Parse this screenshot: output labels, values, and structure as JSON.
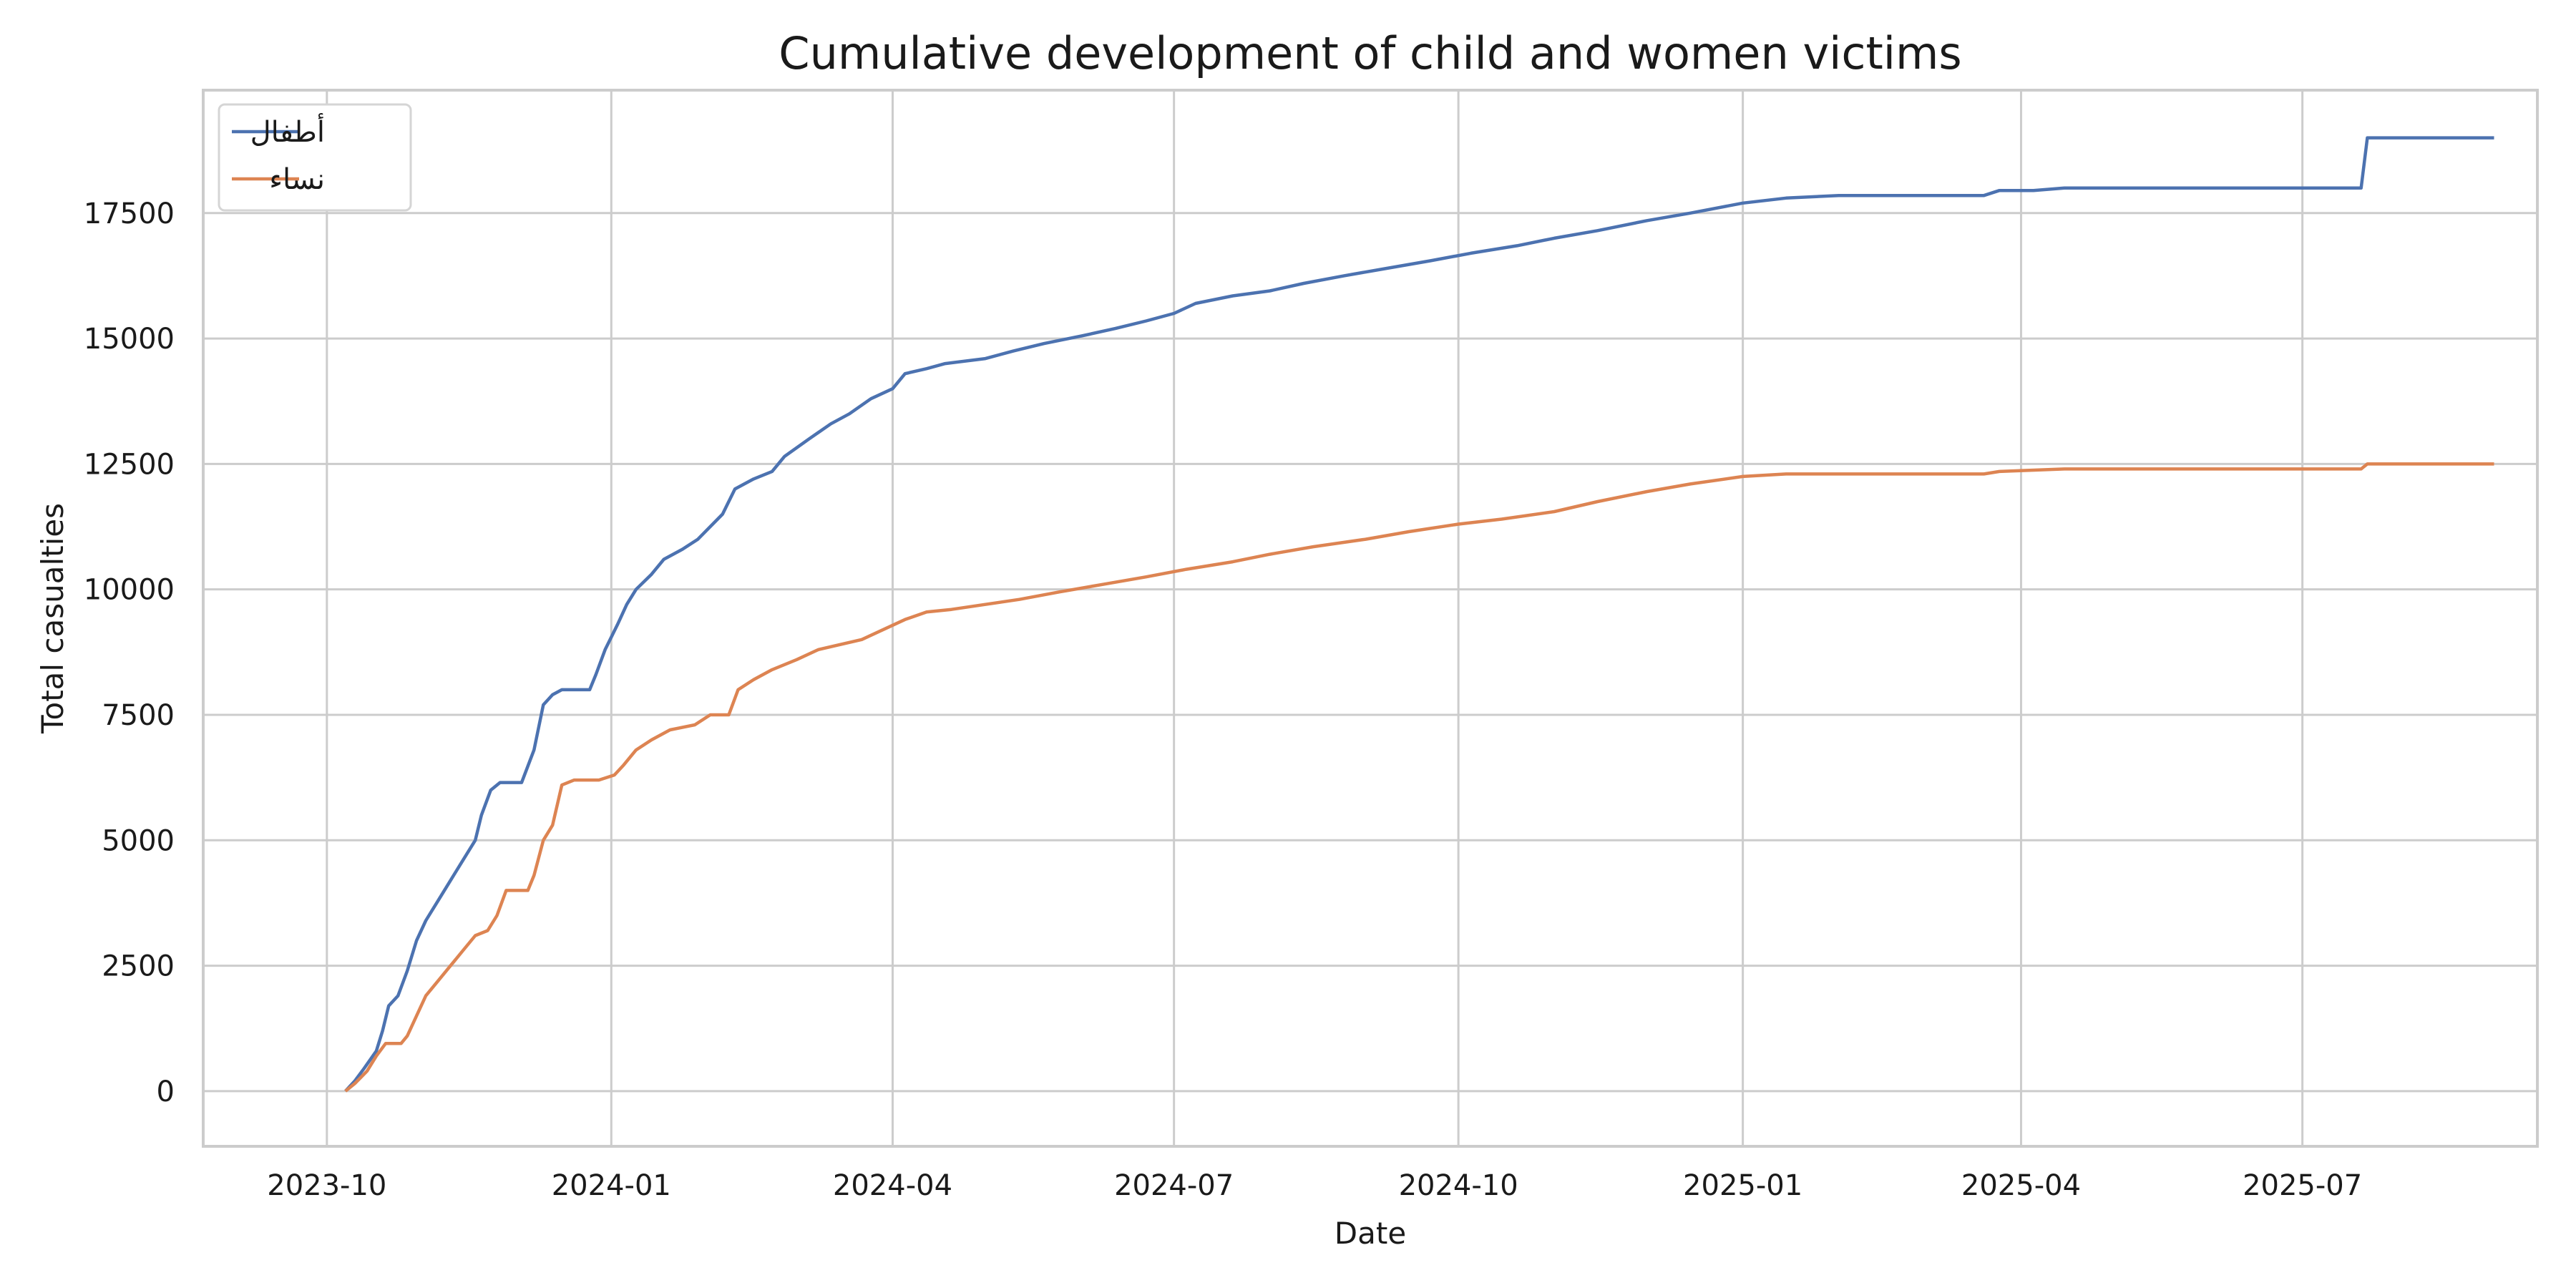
{
  "chart_data": {
    "type": "line",
    "title": "Cumulative development of child and women victims",
    "xlabel": "Date",
    "ylabel": "Total casualties",
    "xlim": [
      "2023-08-22",
      "2025-09-15"
    ],
    "ylim": [
      -1100,
      19950
    ],
    "x_ticks": [
      "2023-10",
      "2024-01",
      "2024-04",
      "2024-07",
      "2024-10",
      "2025-01",
      "2025-04",
      "2025-07"
    ],
    "y_ticks": [
      0,
      2500,
      5000,
      7500,
      10000,
      12500,
      15000,
      17500
    ],
    "grid": true,
    "legend_position": "top-left",
    "series": [
      {
        "name": "أطفال",
        "color": "#4c72b0",
        "points": [
          [
            "2023-10-07",
            0
          ],
          [
            "2023-10-10",
            200
          ],
          [
            "2023-10-13",
            450
          ],
          [
            "2023-10-17",
            800
          ],
          [
            "2023-10-19",
            1200
          ],
          [
            "2023-10-21",
            1700
          ],
          [
            "2023-10-24",
            1900
          ],
          [
            "2023-10-27",
            2400
          ],
          [
            "2023-10-30",
            3000
          ],
          [
            "2023-11-02",
            3400
          ],
          [
            "2023-11-06",
            3800
          ],
          [
            "2023-11-10",
            4200
          ],
          [
            "2023-11-14",
            4600
          ],
          [
            "2023-11-18",
            5000
          ],
          [
            "2023-11-20",
            5500
          ],
          [
            "2023-11-23",
            6000
          ],
          [
            "2023-11-26",
            6150
          ],
          [
            "2023-12-03",
            6150
          ],
          [
            "2023-12-07",
            6800
          ],
          [
            "2023-12-10",
            7700
          ],
          [
            "2023-12-13",
            7900
          ],
          [
            "2023-12-16",
            8000
          ],
          [
            "2023-12-25",
            8000
          ],
          [
            "2023-12-27",
            8300
          ],
          [
            "2023-12-30",
            8800
          ],
          [
            "2024-01-03",
            9300
          ],
          [
            "2024-01-06",
            9700
          ],
          [
            "2024-01-09",
            10000
          ],
          [
            "2024-01-14",
            10300
          ],
          [
            "2024-01-18",
            10600
          ],
          [
            "2024-01-24",
            10800
          ],
          [
            "2024-01-29",
            11000
          ],
          [
            "2024-02-06",
            11500
          ],
          [
            "2024-02-10",
            12000
          ],
          [
            "2024-02-16",
            12200
          ],
          [
            "2024-02-22",
            12350
          ],
          [
            "2024-02-26",
            12650
          ],
          [
            "2024-03-05",
            13000
          ],
          [
            "2024-03-12",
            13300
          ],
          [
            "2024-03-18",
            13500
          ],
          [
            "2024-03-25",
            13800
          ],
          [
            "2024-04-01",
            14000
          ],
          [
            "2024-04-05",
            14300
          ],
          [
            "2024-04-12",
            14400
          ],
          [
            "2024-04-18",
            14500
          ],
          [
            "2024-05-01",
            14600
          ],
          [
            "2024-05-10",
            14750
          ],
          [
            "2024-05-20",
            14900
          ],
          [
            "2024-06-01",
            15050
          ],
          [
            "2024-06-12",
            15200
          ],
          [
            "2024-06-22",
            15350
          ],
          [
            "2024-07-01",
            15500
          ],
          [
            "2024-07-08",
            15700
          ],
          [
            "2024-07-20",
            15850
          ],
          [
            "2024-08-01",
            15950
          ],
          [
            "2024-08-12",
            16100
          ],
          [
            "2024-08-25",
            16250
          ],
          [
            "2024-09-08",
            16400
          ],
          [
            "2024-09-22",
            16550
          ],
          [
            "2024-10-05",
            16700
          ],
          [
            "2024-10-20",
            16850
          ],
          [
            "2024-11-01",
            17000
          ],
          [
            "2024-11-15",
            17150
          ],
          [
            "2024-12-01",
            17350
          ],
          [
            "2024-12-15",
            17500
          ],
          [
            "2025-01-01",
            17700
          ],
          [
            "2025-01-15",
            17800
          ],
          [
            "2025-02-01",
            17850
          ],
          [
            "2025-02-20",
            17850
          ],
          [
            "2025-03-20",
            17850
          ],
          [
            "2025-03-25",
            17950
          ],
          [
            "2025-04-05",
            17950
          ],
          [
            "2025-04-15",
            18000
          ],
          [
            "2025-06-01",
            18000
          ],
          [
            "2025-07-20",
            18000
          ],
          [
            "2025-07-22",
            19000
          ],
          [
            "2025-09-01",
            19000
          ]
        ]
      },
      {
        "name": "نساء",
        "color": "#dd8452",
        "points": [
          [
            "2023-10-07",
            0
          ],
          [
            "2023-10-10",
            150
          ],
          [
            "2023-10-14",
            400
          ],
          [
            "2023-10-17",
            700
          ],
          [
            "2023-10-20",
            950
          ],
          [
            "2023-10-25",
            950
          ],
          [
            "2023-10-27",
            1100
          ],
          [
            "2023-10-30",
            1500
          ],
          [
            "2023-11-02",
            1900
          ],
          [
            "2023-11-06",
            2200
          ],
          [
            "2023-11-10",
            2500
          ],
          [
            "2023-11-14",
            2800
          ],
          [
            "2023-11-18",
            3100
          ],
          [
            "2023-11-22",
            3200
          ],
          [
            "2023-11-25",
            3500
          ],
          [
            "2023-11-28",
            4000
          ],
          [
            "2023-12-05",
            4000
          ],
          [
            "2023-12-07",
            4300
          ],
          [
            "2023-12-10",
            5000
          ],
          [
            "2023-12-13",
            5300
          ],
          [
            "2023-12-16",
            6100
          ],
          [
            "2023-12-20",
            6200
          ],
          [
            "2023-12-28",
            6200
          ],
          [
            "2024-01-02",
            6300
          ],
          [
            "2024-01-05",
            6500
          ],
          [
            "2024-01-09",
            6800
          ],
          [
            "2024-01-14",
            7000
          ],
          [
            "2024-01-20",
            7200
          ],
          [
            "2024-01-28",
            7300
          ],
          [
            "2024-02-02",
            7500
          ],
          [
            "2024-02-08",
            7500
          ],
          [
            "2024-02-11",
            8000
          ],
          [
            "2024-02-16",
            8200
          ],
          [
            "2024-02-22",
            8400
          ],
          [
            "2024-03-01",
            8600
          ],
          [
            "2024-03-08",
            8800
          ],
          [
            "2024-03-15",
            8900
          ],
          [
            "2024-03-22",
            9000
          ],
          [
            "2024-03-29",
            9200
          ],
          [
            "2024-04-05",
            9400
          ],
          [
            "2024-04-12",
            9550
          ],
          [
            "2024-04-20",
            9600
          ],
          [
            "2024-05-01",
            9700
          ],
          [
            "2024-05-12",
            9800
          ],
          [
            "2024-05-25",
            9950
          ],
          [
            "2024-06-08",
            10100
          ],
          [
            "2024-06-22",
            10250
          ],
          [
            "2024-07-05",
            10400
          ],
          [
            "2024-07-20",
            10550
          ],
          [
            "2024-08-01",
            10700
          ],
          [
            "2024-08-15",
            10850
          ],
          [
            "2024-09-01",
            11000
          ],
          [
            "2024-09-15",
            11150
          ],
          [
            "2024-10-01",
            11300
          ],
          [
            "2024-10-15",
            11400
          ],
          [
            "2024-11-01",
            11550
          ],
          [
            "2024-11-15",
            11750
          ],
          [
            "2024-12-01",
            11950
          ],
          [
            "2024-12-15",
            12100
          ],
          [
            "2025-01-01",
            12250
          ],
          [
            "2025-01-15",
            12300
          ],
          [
            "2025-02-01",
            12300
          ],
          [
            "2025-03-20",
            12300
          ],
          [
            "2025-03-25",
            12350
          ],
          [
            "2025-04-15",
            12400
          ],
          [
            "2025-07-20",
            12400
          ],
          [
            "2025-07-22",
            12500
          ],
          [
            "2025-09-01",
            12500
          ]
        ]
      }
    ]
  }
}
